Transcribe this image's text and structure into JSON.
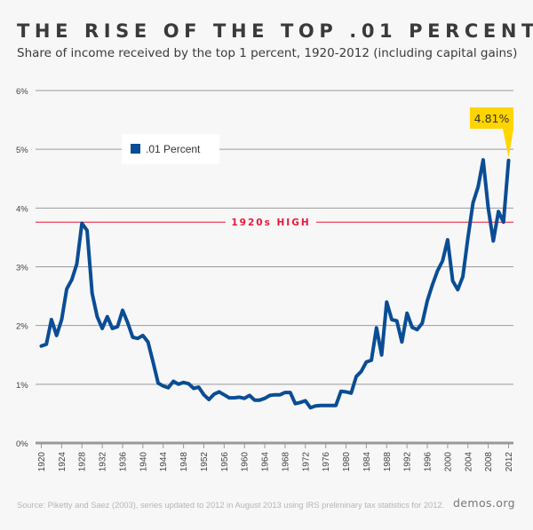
{
  "title": "THE RISE OF THE TOP .01 PERCENT",
  "subtitle": "Share of income received by the top 1 percent, 1920-2012 (including capital gains)",
  "source": "Source: Piketty and Saez (2003), series updated to 2012 in August 2013 using IRS preliminary tax statistics for 2012.",
  "brand": "demos.org",
  "chart_data": {
    "type": "line",
    "title": "THE RISE OF THE TOP .01 PERCENT",
    "subtitle": "Share of income received by the top 1 percent, 1920-2012 (including capital gains)",
    "ylim": [
      0,
      6
    ],
    "xlim": [
      1920,
      2012
    ],
    "grid": true,
    "legend": "top-left",
    "y_ticks": [
      "0%",
      "1%",
      "2%",
      "3%",
      "4%",
      "5%",
      "6%"
    ],
    "x_ticks": [
      "1920",
      "1924",
      "1928",
      "1932",
      "1936",
      "1940",
      "1944",
      "1948",
      "1952",
      "1956",
      "1960",
      "1964",
      "1968",
      "1972",
      "1976",
      "1980",
      "1984",
      "1988",
      "1992",
      "1996",
      "2000",
      "2004",
      "2008",
      "2012"
    ],
    "reference_line": {
      "label": "1920s HIGH",
      "value": 3.76,
      "color": "#e8173a"
    },
    "annotation": {
      "label": "4.81%",
      "year": 2012,
      "color": "#ffd500"
    },
    "series": [
      {
        "name": ".01 Percent",
        "color": "#0a4d94",
        "x": [
          1920,
          1921,
          1922,
          1923,
          1924,
          1925,
          1926,
          1927,
          1928,
          1929,
          1930,
          1931,
          1932,
          1933,
          1934,
          1935,
          1936,
          1937,
          1938,
          1939,
          1940,
          1941,
          1942,
          1943,
          1944,
          1945,
          1946,
          1947,
          1948,
          1949,
          1950,
          1951,
          1952,
          1953,
          1954,
          1955,
          1956,
          1957,
          1958,
          1959,
          1960,
          1961,
          1962,
          1963,
          1964,
          1965,
          1966,
          1967,
          1968,
          1969,
          1970,
          1971,
          1972,
          1973,
          1974,
          1975,
          1976,
          1977,
          1978,
          1979,
          1980,
          1981,
          1982,
          1983,
          1984,
          1985,
          1986,
          1987,
          1988,
          1989,
          1990,
          1991,
          1992,
          1993,
          1994,
          1995,
          1996,
          1997,
          1998,
          1999,
          2000,
          2001,
          2002,
          2003,
          2004,
          2005,
          2006,
          2007,
          2008,
          2009,
          2010,
          2011,
          2012
        ],
        "values": [
          1.65,
          1.68,
          2.1,
          1.83,
          2.1,
          2.62,
          2.78,
          3.05,
          3.74,
          3.62,
          2.55,
          2.15,
          1.95,
          2.15,
          1.95,
          1.98,
          2.26,
          2.05,
          1.8,
          1.78,
          1.83,
          1.72,
          1.38,
          1.02,
          0.97,
          0.94,
          1.05,
          1.0,
          1.03,
          1.01,
          0.93,
          0.95,
          0.82,
          0.74,
          0.83,
          0.87,
          0.82,
          0.77,
          0.77,
          0.78,
          0.76,
          0.81,
          0.73,
          0.73,
          0.76,
          0.81,
          0.82,
          0.82,
          0.86,
          0.86,
          0.67,
          0.69,
          0.72,
          0.6,
          0.63,
          0.64,
          0.64,
          0.64,
          0.64,
          0.88,
          0.87,
          0.85,
          1.13,
          1.22,
          1.38,
          1.41,
          1.96,
          1.5,
          2.4,
          2.1,
          2.08,
          1.72,
          2.21,
          1.97,
          1.93,
          2.04,
          2.42,
          2.69,
          2.93,
          3.1,
          3.46,
          2.76,
          2.61,
          2.83,
          3.5,
          4.09,
          4.36,
          4.82,
          4.0,
          3.44,
          3.94,
          3.76,
          4.81
        ]
      }
    ]
  }
}
